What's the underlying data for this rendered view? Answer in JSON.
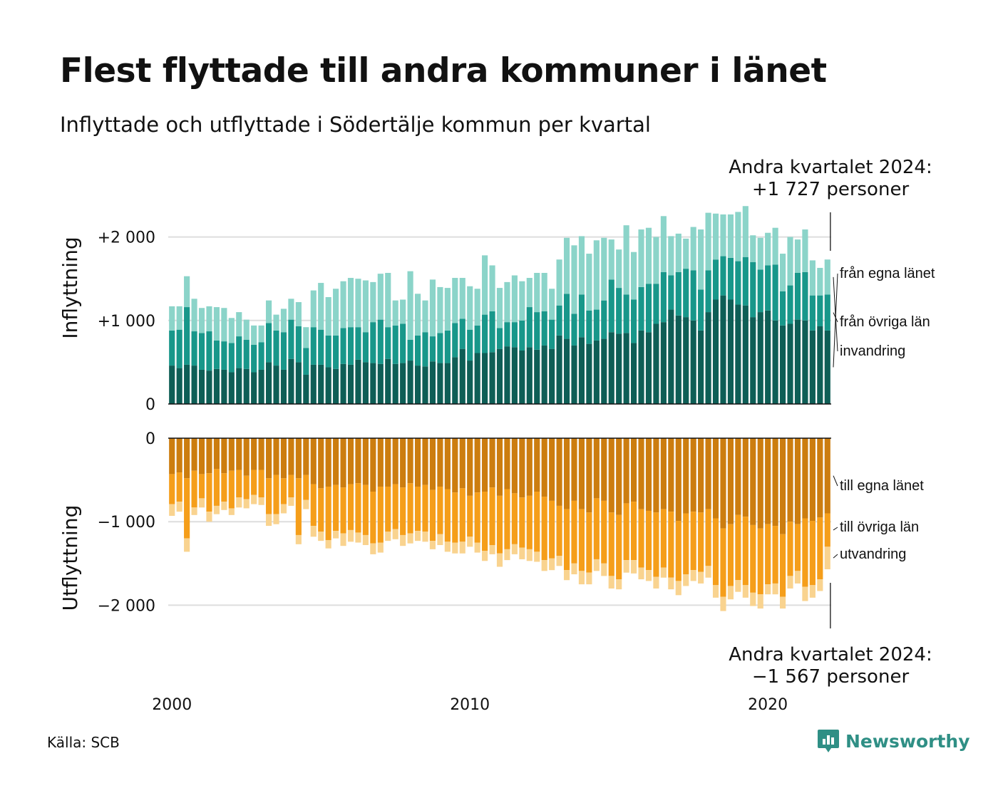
{
  "title": "Flest flyttade till andra kommuner i länet",
  "subtitle": "Inflyttade och utflyttade i Södertälje kommun per kvartal",
  "annotation_top": {
    "line1": "Andra kvartalet 2024:",
    "line2": "+1 727 personer"
  },
  "annotation_bottom": {
    "line1": "Andra kvartalet 2024:",
    "line2": "−1 567 personer"
  },
  "source": "Källa: SCB",
  "logo": {
    "text": "Newsworthy",
    "icon": "newsworthy-logo-icon",
    "color": "#2f8f85"
  },
  "chart_data": [
    {
      "type": "bar",
      "stacked": true,
      "ylabel": "Inflyttning",
      "yticks": [
        0,
        1000,
        2000
      ],
      "ytick_labels": [
        "0",
        "+1 000",
        "+2 000"
      ],
      "ylim": [
        0,
        2300
      ],
      "xticks": [
        2000,
        2010,
        2020
      ],
      "xtick_labels": [
        "2000",
        "2010",
        "2020"
      ],
      "x_start": "2000 Q1",
      "x_end": "2024 Q2",
      "grid": true,
      "legend_placement": "right, labels at end of bars",
      "series": [
        {
          "name": "från egna länet",
          "color": "#0e5e56",
          "values": [
            460,
            430,
            470,
            460,
            410,
            400,
            420,
            410,
            380,
            430,
            420,
            380,
            410,
            500,
            460,
            410,
            540,
            500,
            350,
            470,
            470,
            440,
            420,
            480,
            470,
            530,
            500,
            490,
            480,
            540,
            480,
            490,
            520,
            460,
            450,
            510,
            490,
            490,
            560,
            660,
            520,
            610,
            610,
            620,
            660,
            690,
            680,
            640,
            680,
            650,
            700,
            660,
            820,
            780,
            700,
            800,
            720,
            760,
            780,
            860,
            840,
            850,
            730,
            880,
            860,
            960,
            980,
            1130,
            1060,
            1040,
            1000,
            880,
            1100,
            1250,
            1300,
            1250,
            1190,
            1180,
            1040,
            1100,
            1120,
            1000,
            940,
            960,
            1010,
            1000,
            880,
            930,
            880
          ]
        },
        {
          "name": "från övriga län",
          "color": "#18978a",
          "values": [
            420,
            460,
            690,
            410,
            440,
            470,
            340,
            340,
            350,
            380,
            350,
            330,
            330,
            470,
            420,
            450,
            470,
            430,
            320,
            450,
            420,
            380,
            400,
            430,
            450,
            390,
            360,
            490,
            530,
            380,
            460,
            470,
            250,
            360,
            410,
            300,
            360,
            390,
            410,
            360,
            370,
            330,
            460,
            490,
            250,
            290,
            300,
            360,
            480,
            450,
            410,
            350,
            360,
            540,
            380,
            510,
            400,
            370,
            460,
            630,
            550,
            460,
            520,
            520,
            580,
            480,
            600,
            410,
            520,
            580,
            600,
            490,
            500,
            480,
            470,
            500,
            520,
            580,
            660,
            510,
            540,
            670,
            410,
            460,
            560,
            580,
            420,
            370,
            430
          ]
        },
        {
          "name": "invandring",
          "color": "#8bd4c9",
          "values": [
            290,
            280,
            370,
            390,
            300,
            300,
            400,
            400,
            300,
            290,
            240,
            230,
            200,
            270,
            190,
            280,
            250,
            290,
            250,
            440,
            560,
            460,
            560,
            560,
            590,
            580,
            620,
            480,
            550,
            650,
            300,
            290,
            820,
            500,
            380,
            680,
            550,
            510,
            540,
            490,
            520,
            440,
            710,
            550,
            480,
            480,
            560,
            470,
            350,
            470,
            460,
            370,
            550,
            670,
            820,
            700,
            680,
            830,
            750,
            480,
            460,
            830,
            570,
            690,
            670,
            560,
            670,
            470,
            460,
            360,
            520,
            720,
            690,
            550,
            500,
            520,
            590,
            610,
            320,
            380,
            390,
            440,
            450,
            580,
            400,
            510,
            420,
            330,
            420
          ]
        }
      ]
    },
    {
      "type": "bar",
      "stacked": true,
      "ylabel": "Utflyttning",
      "yticks": [
        0,
        -1000,
        -2000
      ],
      "ytick_labels": [
        "0",
        "−1 000",
        "−2 000"
      ],
      "ylim": [
        -2300,
        0
      ],
      "xticks": [
        2000,
        2010,
        2020
      ],
      "xtick_labels": [
        "2000",
        "2010",
        "2020"
      ],
      "x_start": "2000 Q1",
      "x_end": "2024 Q2",
      "grid": true,
      "legend_placement": "right, labels at end of bars",
      "series": [
        {
          "name": "till egna länet",
          "color": "#cc7d0f",
          "values": [
            -430,
            -410,
            -480,
            -390,
            -430,
            -420,
            -370,
            -420,
            -390,
            -380,
            -450,
            -380,
            -380,
            -480,
            -440,
            -480,
            -440,
            -480,
            -440,
            -550,
            -600,
            -580,
            -560,
            -590,
            -550,
            -540,
            -560,
            -640,
            -580,
            -580,
            -550,
            -590,
            -540,
            -580,
            -560,
            -620,
            -580,
            -610,
            -650,
            -600,
            -690,
            -650,
            -640,
            -590,
            -690,
            -610,
            -660,
            -710,
            -690,
            -640,
            -700,
            -750,
            -810,
            -850,
            -750,
            -850,
            -890,
            -720,
            -750,
            -890,
            -920,
            -780,
            -760,
            -850,
            -870,
            -890,
            -850,
            -880,
            -990,
            -900,
            -880,
            -890,
            -850,
            -960,
            -1080,
            -1030,
            -920,
            -940,
            -1040,
            -1080,
            -1030,
            -1050,
            -1150,
            -1000,
            -1030,
            -960,
            -990,
            -950,
            -900
          ]
        },
        {
          "name": "till övriga län",
          "color": "#f59e1a",
          "values": [
            -360,
            -350,
            -720,
            -440,
            -290,
            -460,
            -440,
            -340,
            -450,
            -330,
            -280,
            -300,
            -330,
            -430,
            -470,
            -310,
            -270,
            -680,
            -300,
            -500,
            -520,
            -640,
            -550,
            -550,
            -550,
            -590,
            -600,
            -620,
            -670,
            -540,
            -540,
            -570,
            -600,
            -530,
            -560,
            -610,
            -570,
            -630,
            -600,
            -640,
            -490,
            -600,
            -710,
            -690,
            -690,
            -720,
            -610,
            -600,
            -640,
            -720,
            -760,
            -690,
            -600,
            -730,
            -750,
            -740,
            -720,
            -730,
            -750,
            -760,
            -770,
            -680,
            -700,
            -700,
            -710,
            -770,
            -700,
            -790,
            -720,
            -730,
            -700,
            -710,
            -680,
            -800,
            -820,
            -740,
            -780,
            -820,
            -810,
            -790,
            -720,
            -690,
            -750,
            -650,
            -560,
            -820,
            -770,
            -740,
            -400
          ]
        },
        {
          "name": "utvandring",
          "color": "#f9d38f",
          "values": [
            -140,
            -120,
            -160,
            -90,
            -110,
            -120,
            -100,
            -100,
            -80,
            -120,
            -110,
            -110,
            -90,
            -140,
            -120,
            -110,
            -100,
            -110,
            -110,
            -130,
            -110,
            -100,
            -90,
            -150,
            -140,
            -120,
            -120,
            -130,
            -120,
            -110,
            -120,
            -130,
            -120,
            -120,
            -120,
            -100,
            -130,
            -120,
            -130,
            -140,
            -120,
            -120,
            -120,
            -110,
            -160,
            -130,
            -120,
            -140,
            -140,
            -120,
            -130,
            -140,
            -120,
            -120,
            -130,
            -160,
            -140,
            -140,
            -150,
            -150,
            -120,
            -150,
            -160,
            -140,
            -130,
            -140,
            -120,
            -140,
            -170,
            -140,
            -130,
            -140,
            -140,
            -150,
            -170,
            -160,
            -140,
            -150,
            -160,
            -170,
            -120,
            -130,
            -140,
            -150,
            -150,
            -170,
            -150,
            -140,
            -270
          ]
        }
      ]
    }
  ]
}
